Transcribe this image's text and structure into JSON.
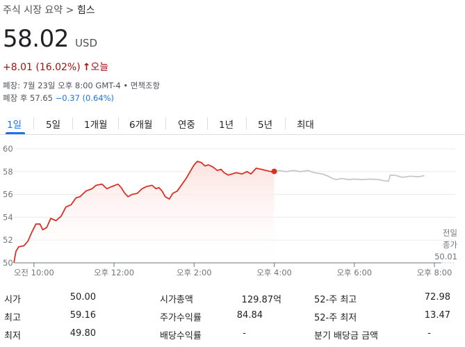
{
  "breadcrumb": {
    "parent": "주식 시장 요약",
    "separator": ">",
    "current": "힘스"
  },
  "quote": {
    "price": "58.02",
    "currency": "USD",
    "change": "+8.01",
    "change_pct": "(16.02%)",
    "change_arrow": "↑",
    "period": "오늘"
  },
  "meta": {
    "closed_line": "폐장: 7월 23일 오후 8:00 GMT-4 • 면책조항",
    "after_prefix": "폐장 후 57.65",
    "after_change": "−0.37 (0.64%)"
  },
  "tabs": [
    {
      "label": "1일",
      "active": true
    },
    {
      "label": "5일",
      "active": false
    },
    {
      "label": "1개월",
      "active": false
    },
    {
      "label": "6개월",
      "active": false
    },
    {
      "label": "연중",
      "active": false
    },
    {
      "label": "1년",
      "active": false
    },
    {
      "label": "5년",
      "active": false
    },
    {
      "label": "최대",
      "active": false
    }
  ],
  "chart_data": {
    "type": "line",
    "xlabels": [
      "오전 10:00",
      "오후 12:00",
      "오후 2:00",
      "오후 4:00",
      "오후 6:00",
      "오후 8:00"
    ],
    "x_tick_hours": [
      10,
      12,
      14,
      16,
      18,
      20
    ],
    "ylim": [
      50,
      60
    ],
    "yticks": [
      50,
      52,
      54,
      56,
      58,
      60
    ],
    "grid": true,
    "colors": {
      "regular": "#d93025",
      "after_hours": "#c8c8c8",
      "fill": "#fbe2df",
      "axis": "#70757a",
      "grid": "#e8eaed"
    },
    "prev_close": {
      "label_line1": "전일",
      "label_line2": "종가",
      "value": "50.01",
      "y": 50.01
    },
    "series": [
      {
        "session": "regular",
        "points": [
          [
            9.5,
            50.0
          ],
          [
            9.55,
            51.0
          ],
          [
            9.62,
            51.4
          ],
          [
            9.75,
            51.5
          ],
          [
            9.85,
            51.9
          ],
          [
            9.95,
            52.7
          ],
          [
            10.05,
            53.4
          ],
          [
            10.15,
            53.4
          ],
          [
            10.22,
            52.9
          ],
          [
            10.32,
            53.1
          ],
          [
            10.42,
            53.9
          ],
          [
            10.55,
            53.7
          ],
          [
            10.68,
            54.1
          ],
          [
            10.8,
            54.9
          ],
          [
            10.93,
            55.1
          ],
          [
            11.05,
            55.7
          ],
          [
            11.15,
            55.8
          ],
          [
            11.3,
            56.3
          ],
          [
            11.45,
            56.5
          ],
          [
            11.55,
            56.8
          ],
          [
            11.7,
            56.9
          ],
          [
            11.82,
            56.5
          ],
          [
            11.95,
            56.7
          ],
          [
            12.1,
            56.9
          ],
          [
            12.18,
            56.6
          ],
          [
            12.27,
            56.1
          ],
          [
            12.35,
            55.8
          ],
          [
            12.45,
            56.0
          ],
          [
            12.58,
            56.1
          ],
          [
            12.7,
            56.5
          ],
          [
            12.82,
            56.7
          ],
          [
            12.95,
            56.8
          ],
          [
            13.05,
            56.5
          ],
          [
            13.12,
            56.6
          ],
          [
            13.2,
            56.3
          ],
          [
            13.28,
            55.8
          ],
          [
            13.38,
            55.6
          ],
          [
            13.47,
            56.1
          ],
          [
            13.58,
            56.3
          ],
          [
            13.7,
            56.9
          ],
          [
            13.8,
            57.4
          ],
          [
            13.9,
            58.0
          ],
          [
            14.0,
            58.6
          ],
          [
            14.08,
            58.9
          ],
          [
            14.18,
            58.8
          ],
          [
            14.27,
            58.5
          ],
          [
            14.36,
            58.6
          ],
          [
            14.47,
            58.4
          ],
          [
            14.58,
            58.1
          ],
          [
            14.67,
            58.2
          ],
          [
            14.75,
            57.9
          ],
          [
            14.85,
            57.7
          ],
          [
            14.95,
            57.8
          ],
          [
            15.05,
            57.9
          ],
          [
            15.2,
            57.8
          ],
          [
            15.32,
            58.0
          ],
          [
            15.42,
            57.8
          ],
          [
            15.55,
            58.3
          ],
          [
            15.68,
            58.2
          ],
          [
            15.8,
            58.1
          ],
          [
            15.92,
            58.0
          ],
          [
            16.0,
            58.02
          ]
        ]
      },
      {
        "session": "after_hours",
        "points": [
          [
            16.0,
            58.02
          ],
          [
            16.12,
            58.1
          ],
          [
            16.3,
            58.0
          ],
          [
            16.48,
            58.1
          ],
          [
            16.65,
            58.0
          ],
          [
            16.85,
            58.1
          ],
          [
            17.0,
            57.9
          ],
          [
            17.2,
            57.8
          ],
          [
            17.35,
            57.6
          ],
          [
            17.45,
            57.4
          ],
          [
            17.55,
            57.3
          ],
          [
            17.7,
            57.4
          ],
          [
            17.85,
            57.3
          ],
          [
            18.0,
            57.35
          ],
          [
            18.2,
            57.3
          ],
          [
            18.4,
            57.35
          ],
          [
            18.6,
            57.3
          ],
          [
            18.75,
            57.2
          ],
          [
            18.85,
            57.15
          ],
          [
            18.9,
            57.7
          ],
          [
            19.05,
            57.65
          ],
          [
            19.2,
            57.5
          ],
          [
            19.4,
            57.6
          ],
          [
            19.6,
            57.55
          ],
          [
            19.75,
            57.65
          ]
        ]
      }
    ]
  },
  "stats": [
    [
      {
        "label": "시가",
        "value": "50.00"
      },
      {
        "label": "시가총액",
        "value": "129.87억"
      },
      {
        "label": "52-주 최고",
        "value": "72.98"
      }
    ],
    [
      {
        "label": "최고",
        "value": "59.16"
      },
      {
        "label": "주가수익률",
        "value": "84.84"
      },
      {
        "label": "52-주 최저",
        "value": "13.47"
      }
    ],
    [
      {
        "label": "최저",
        "value": "49.80"
      },
      {
        "label": "배당수익률",
        "value": "-"
      },
      {
        "label": "분기 배당금 금액",
        "value": "-"
      }
    ]
  ]
}
